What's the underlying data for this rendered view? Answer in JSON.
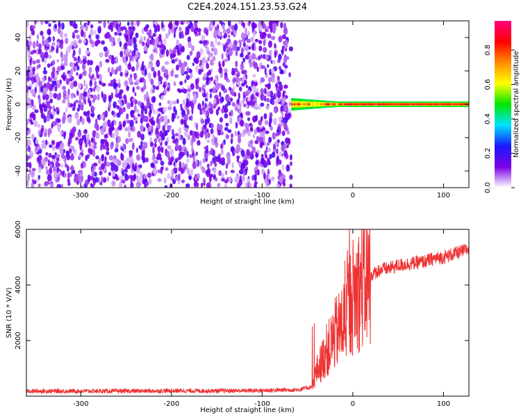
{
  "title": "C2E4.2024.151.23.53.G24",
  "chart_data": [
    {
      "type": "heatmap",
      "xlabel": "Height of straight line (km)",
      "ylabel": "Frequency (Hz)",
      "xlim": [
        -360,
        128
      ],
      "ylim": [
        -50,
        50
      ],
      "xticks": [
        -300,
        -200,
        -100,
        0,
        100
      ],
      "yticks": [
        -40,
        -20,
        0,
        20,
        40
      ],
      "noise_region": {
        "x": [
          -360,
          -68
        ],
        "y": [
          -50,
          50
        ],
        "typical_amplitude": 0.15
      },
      "signal_region": {
        "x": [
          -68,
          128
        ],
        "frequency": 0,
        "typical_amplitude": 0.95
      },
      "colorbar": {
        "label": "Normalized spectral amplitude",
        "ticks": [
          "0.0",
          "0.2",
          "0.4",
          "0.6",
          "0.8"
        ],
        "range": [
          0,
          0.97
        ],
        "colors": [
          "#ffffff",
          "#7a00e6",
          "#1a1aff",
          "#00e5ff",
          "#00e600",
          "#ffff00",
          "#ff8c00",
          "#ff0000",
          "#ff0080"
        ]
      }
    },
    {
      "type": "line",
      "xlabel": "Height of straight line (km)",
      "ylabel": "SNR (10 * V/V)",
      "xlim": [
        -360,
        128
      ],
      "ylim": [
        0,
        6000
      ],
      "xticks": [
        -300,
        -200,
        -100,
        0,
        100
      ],
      "yticks": [
        2000,
        4000,
        6000
      ],
      "color": "#ee3333",
      "x": [
        -360,
        -300,
        -250,
        -200,
        -150,
        -100,
        -60,
        -45,
        -40,
        -35,
        -30,
        -25,
        -20,
        -15,
        -10,
        -5,
        0,
        10,
        20,
        30,
        40,
        50,
        60,
        70,
        80,
        90,
        100,
        110,
        120,
        128
      ],
      "y": [
        150,
        150,
        150,
        160,
        160,
        170,
        200,
        300,
        900,
        1200,
        1600,
        1800,
        2200,
        2400,
        2700,
        3200,
        3600,
        4000,
        4350,
        4550,
        4600,
        4700,
        4750,
        4800,
        4850,
        4950,
        5000,
        5100,
        5200,
        5300
      ]
    }
  ]
}
